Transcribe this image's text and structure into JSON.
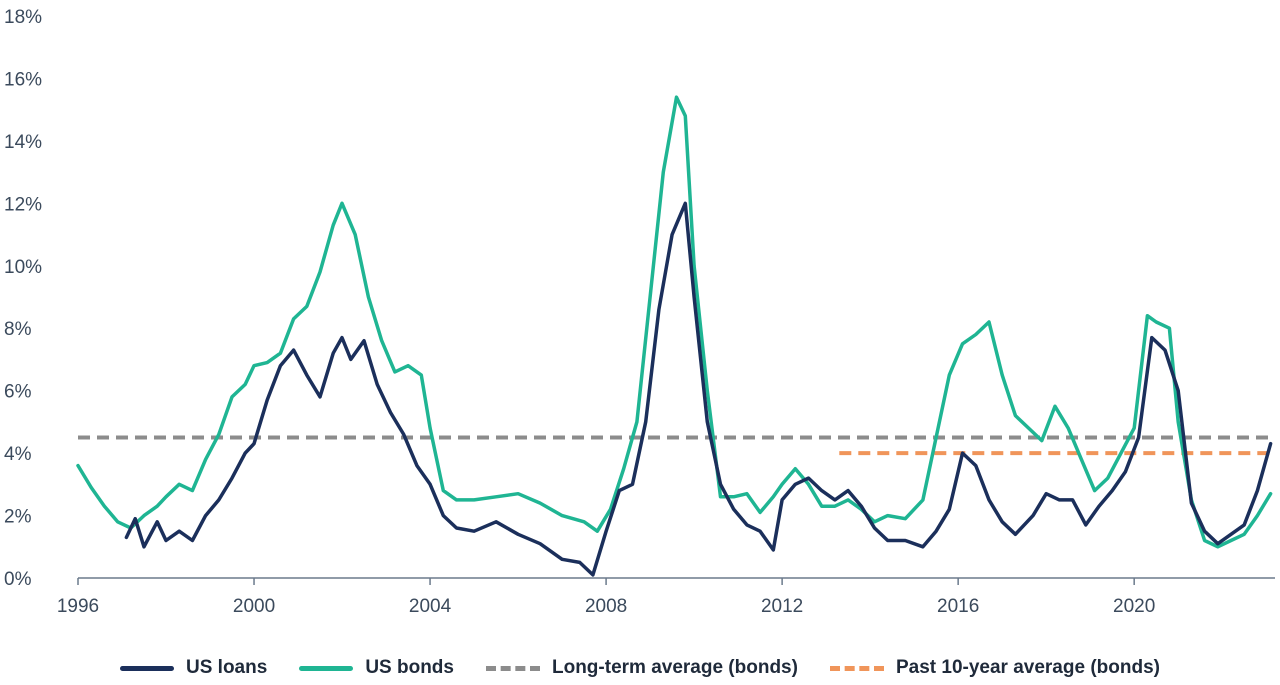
{
  "chart_data": {
    "type": "line",
    "title": "",
    "xlabel": "",
    "ylabel": "",
    "xlim": [
      1996,
      2023.2
    ],
    "ylim": [
      0,
      18
    ],
    "y_ticks": [
      "0%",
      "2%",
      "4%",
      "6%",
      "8%",
      "10%",
      "12%",
      "14%",
      "16%",
      "18%"
    ],
    "x_ticks": [
      "1996",
      "2000",
      "2004",
      "2008",
      "2012",
      "2016",
      "2020"
    ],
    "grid": false,
    "legend_position": "bottom",
    "series": [
      {
        "name": "US loans",
        "color": "#1b2f5b",
        "x": [
          1997.1,
          1997.3,
          1997.5,
          1997.8,
          1998.0,
          1998.3,
          1998.6,
          1998.9,
          1999.2,
          1999.5,
          1999.8,
          2000.0,
          2000.3,
          2000.6,
          2000.9,
          2001.2,
          2001.5,
          2001.8,
          2002.0,
          2002.2,
          2002.5,
          2002.8,
          2003.1,
          2003.4,
          2003.7,
          2004.0,
          2004.3,
          2004.6,
          2005.0,
          2005.5,
          2006.0,
          2006.5,
          2007.0,
          2007.4,
          2007.7,
          2008.0,
          2008.3,
          2008.6,
          2008.9,
          2009.2,
          2009.5,
          2009.8,
          2010.0,
          2010.3,
          2010.6,
          2010.9,
          2011.2,
          2011.5,
          2011.8,
          2012.0,
          2012.3,
          2012.6,
          2012.9,
          2013.2,
          2013.5,
          2013.8,
          2014.1,
          2014.4,
          2014.8,
          2015.2,
          2015.5,
          2015.8,
          2016.1,
          2016.4,
          2016.7,
          2017.0,
          2017.3,
          2017.7,
          2018.0,
          2018.3,
          2018.6,
          2018.9,
          2019.2,
          2019.5,
          2019.8,
          2020.1,
          2020.4,
          2020.7,
          2021.0,
          2021.3,
          2021.6,
          2021.9,
          2022.2,
          2022.5,
          2022.8,
          2023.1
        ],
        "values": [
          1.3,
          1.9,
          1.0,
          1.8,
          1.2,
          1.5,
          1.2,
          2.0,
          2.5,
          3.2,
          4.0,
          4.3,
          5.7,
          6.8,
          7.3,
          6.5,
          5.8,
          7.2,
          7.7,
          7.0,
          7.6,
          6.2,
          5.3,
          4.6,
          3.6,
          3.0,
          2.0,
          1.6,
          1.5,
          1.8,
          1.4,
          1.1,
          0.6,
          0.5,
          0.1,
          1.5,
          2.8,
          3.0,
          5.0,
          8.6,
          11.0,
          12.0,
          9.0,
          5.0,
          3.0,
          2.2,
          1.7,
          1.5,
          0.9,
          2.5,
          3.0,
          3.2,
          2.8,
          2.5,
          2.8,
          2.3,
          1.6,
          1.2,
          1.2,
          1.0,
          1.5,
          2.2,
          4.0,
          3.6,
          2.5,
          1.8,
          1.4,
          2.0,
          2.7,
          2.5,
          2.5,
          1.7,
          2.3,
          2.8,
          3.4,
          4.5,
          7.7,
          7.3,
          6.0,
          2.4,
          1.5,
          1.1,
          1.4,
          1.7,
          2.8,
          4.3
        ]
      },
      {
        "name": "US bonds",
        "color": "#1fb593",
        "x": [
          1996.0,
          1996.3,
          1996.6,
          1996.9,
          1997.2,
          1997.5,
          1997.8,
          1998.0,
          1998.3,
          1998.6,
          1998.9,
          1999.2,
          1999.5,
          1999.8,
          2000.0,
          2000.3,
          2000.6,
          2000.9,
          2001.2,
          2001.5,
          2001.8,
          2002.0,
          2002.3,
          2002.6,
          2002.9,
          2003.2,
          2003.5,
          2003.8,
          2004.0,
          2004.3,
          2004.6,
          2005.0,
          2005.5,
          2006.0,
          2006.5,
          2007.0,
          2007.5,
          2007.8,
          2008.1,
          2008.4,
          2008.7,
          2009.0,
          2009.3,
          2009.6,
          2009.8,
          2010.0,
          2010.3,
          2010.6,
          2010.9,
          2011.2,
          2011.5,
          2011.8,
          2012.0,
          2012.3,
          2012.6,
          2012.9,
          2013.2,
          2013.5,
          2013.8,
          2014.1,
          2014.4,
          2014.8,
          2015.2,
          2015.5,
          2015.8,
          2016.1,
          2016.4,
          2016.7,
          2017.0,
          2017.3,
          2017.6,
          2017.9,
          2018.2,
          2018.5,
          2018.8,
          2019.1,
          2019.4,
          2019.7,
          2020.0,
          2020.3,
          2020.5,
          2020.8,
          2021.0,
          2021.3,
          2021.6,
          2021.9,
          2022.2,
          2022.5,
          2022.8,
          2023.1
        ],
        "values": [
          3.6,
          2.9,
          2.3,
          1.8,
          1.6,
          2.0,
          2.3,
          2.6,
          3.0,
          2.8,
          3.8,
          4.6,
          5.8,
          6.2,
          6.8,
          6.9,
          7.2,
          8.3,
          8.7,
          9.8,
          11.3,
          12.0,
          11.0,
          9.0,
          7.6,
          6.6,
          6.8,
          6.5,
          4.8,
          2.8,
          2.5,
          2.5,
          2.6,
          2.7,
          2.4,
          2.0,
          1.8,
          1.5,
          2.2,
          3.5,
          5.0,
          9.0,
          13.0,
          15.4,
          14.8,
          10.0,
          6.0,
          2.6,
          2.6,
          2.7,
          2.1,
          2.6,
          3.0,
          3.5,
          3.0,
          2.3,
          2.3,
          2.5,
          2.2,
          1.8,
          2.0,
          1.9,
          2.5,
          4.5,
          6.5,
          7.5,
          7.8,
          8.2,
          6.5,
          5.2,
          4.8,
          4.4,
          5.5,
          4.8,
          3.8,
          2.8,
          3.2,
          4.0,
          4.8,
          8.4,
          8.2,
          8.0,
          5.0,
          2.5,
          1.2,
          1.0,
          1.2,
          1.4,
          2.0,
          2.7
        ]
      },
      {
        "name": "Long-term average (bonds)",
        "color": "#8c8c8c",
        "dashed": true,
        "x": [
          1996.0,
          2023.2
        ],
        "values": [
          4.5,
          4.5
        ]
      },
      {
        "name": "Past 10-year average (bonds)",
        "color": "#f0955a",
        "dashed": true,
        "x": [
          2013.3,
          2023.2
        ],
        "values": [
          4.0,
          4.0
        ]
      }
    ]
  }
}
